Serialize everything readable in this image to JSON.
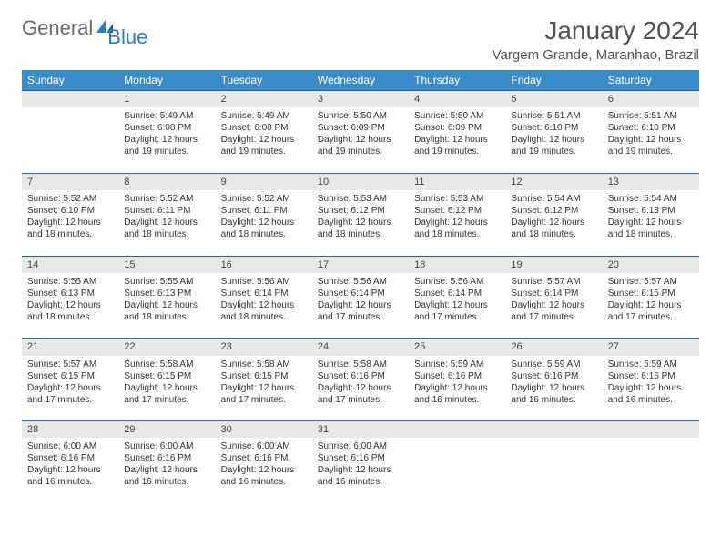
{
  "brand": {
    "word1": "General",
    "word2": "Blue"
  },
  "title": "January 2024",
  "location": "Vargem Grande, Maranhao, Brazil",
  "colors": {
    "header_bg": "#3b8bc9",
    "header_text": "#ffffff",
    "daynum_bg": "#e8e8e8",
    "border": "#2d5f8a",
    "brand_gray": "#6b6b6b",
    "brand_blue": "#2d7bbf",
    "text": "#333333",
    "page_bg": "#ffffff"
  },
  "typography": {
    "title_fontsize": 28,
    "location_fontsize": 15,
    "dayheader_fontsize": 12,
    "daynum_fontsize": 11,
    "cell_fontsize": 10
  },
  "day_headers": [
    "Sunday",
    "Monday",
    "Tuesday",
    "Wednesday",
    "Thursday",
    "Friday",
    "Saturday"
  ],
  "weeks": [
    {
      "nums": [
        "",
        "1",
        "2",
        "3",
        "4",
        "5",
        "6"
      ],
      "cells": [
        null,
        {
          "sunrise": "Sunrise: 5:49 AM",
          "sunset": "Sunset: 6:08 PM",
          "day1": "Daylight: 12 hours",
          "day2": "and 19 minutes."
        },
        {
          "sunrise": "Sunrise: 5:49 AM",
          "sunset": "Sunset: 6:08 PM",
          "day1": "Daylight: 12 hours",
          "day2": "and 19 minutes."
        },
        {
          "sunrise": "Sunrise: 5:50 AM",
          "sunset": "Sunset: 6:09 PM",
          "day1": "Daylight: 12 hours",
          "day2": "and 19 minutes."
        },
        {
          "sunrise": "Sunrise: 5:50 AM",
          "sunset": "Sunset: 6:09 PM",
          "day1": "Daylight: 12 hours",
          "day2": "and 19 minutes."
        },
        {
          "sunrise": "Sunrise: 5:51 AM",
          "sunset": "Sunset: 6:10 PM",
          "day1": "Daylight: 12 hours",
          "day2": "and 19 minutes."
        },
        {
          "sunrise": "Sunrise: 5:51 AM",
          "sunset": "Sunset: 6:10 PM",
          "day1": "Daylight: 12 hours",
          "day2": "and 19 minutes."
        }
      ]
    },
    {
      "nums": [
        "7",
        "8",
        "9",
        "10",
        "11",
        "12",
        "13"
      ],
      "cells": [
        {
          "sunrise": "Sunrise: 5:52 AM",
          "sunset": "Sunset: 6:10 PM",
          "day1": "Daylight: 12 hours",
          "day2": "and 18 minutes."
        },
        {
          "sunrise": "Sunrise: 5:52 AM",
          "sunset": "Sunset: 6:11 PM",
          "day1": "Daylight: 12 hours",
          "day2": "and 18 minutes."
        },
        {
          "sunrise": "Sunrise: 5:52 AM",
          "sunset": "Sunset: 6:11 PM",
          "day1": "Daylight: 12 hours",
          "day2": "and 18 minutes."
        },
        {
          "sunrise": "Sunrise: 5:53 AM",
          "sunset": "Sunset: 6:12 PM",
          "day1": "Daylight: 12 hours",
          "day2": "and 18 minutes."
        },
        {
          "sunrise": "Sunrise: 5:53 AM",
          "sunset": "Sunset: 6:12 PM",
          "day1": "Daylight: 12 hours",
          "day2": "and 18 minutes."
        },
        {
          "sunrise": "Sunrise: 5:54 AM",
          "sunset": "Sunset: 6:12 PM",
          "day1": "Daylight: 12 hours",
          "day2": "and 18 minutes."
        },
        {
          "sunrise": "Sunrise: 5:54 AM",
          "sunset": "Sunset: 6:13 PM",
          "day1": "Daylight: 12 hours",
          "day2": "and 18 minutes."
        }
      ]
    },
    {
      "nums": [
        "14",
        "15",
        "16",
        "17",
        "18",
        "19",
        "20"
      ],
      "cells": [
        {
          "sunrise": "Sunrise: 5:55 AM",
          "sunset": "Sunset: 6:13 PM",
          "day1": "Daylight: 12 hours",
          "day2": "and 18 minutes."
        },
        {
          "sunrise": "Sunrise: 5:55 AM",
          "sunset": "Sunset: 6:13 PM",
          "day1": "Daylight: 12 hours",
          "day2": "and 18 minutes."
        },
        {
          "sunrise": "Sunrise: 5:56 AM",
          "sunset": "Sunset: 6:14 PM",
          "day1": "Daylight: 12 hours",
          "day2": "and 18 minutes."
        },
        {
          "sunrise": "Sunrise: 5:56 AM",
          "sunset": "Sunset: 6:14 PM",
          "day1": "Daylight: 12 hours",
          "day2": "and 17 minutes."
        },
        {
          "sunrise": "Sunrise: 5:56 AM",
          "sunset": "Sunset: 6:14 PM",
          "day1": "Daylight: 12 hours",
          "day2": "and 17 minutes."
        },
        {
          "sunrise": "Sunrise: 5:57 AM",
          "sunset": "Sunset: 6:14 PM",
          "day1": "Daylight: 12 hours",
          "day2": "and 17 minutes."
        },
        {
          "sunrise": "Sunrise: 5:57 AM",
          "sunset": "Sunset: 6:15 PM",
          "day1": "Daylight: 12 hours",
          "day2": "and 17 minutes."
        }
      ]
    },
    {
      "nums": [
        "21",
        "22",
        "23",
        "24",
        "25",
        "26",
        "27"
      ],
      "cells": [
        {
          "sunrise": "Sunrise: 5:57 AM",
          "sunset": "Sunset: 6:15 PM",
          "day1": "Daylight: 12 hours",
          "day2": "and 17 minutes."
        },
        {
          "sunrise": "Sunrise: 5:58 AM",
          "sunset": "Sunset: 6:15 PM",
          "day1": "Daylight: 12 hours",
          "day2": "and 17 minutes."
        },
        {
          "sunrise": "Sunrise: 5:58 AM",
          "sunset": "Sunset: 6:15 PM",
          "day1": "Daylight: 12 hours",
          "day2": "and 17 minutes."
        },
        {
          "sunrise": "Sunrise: 5:58 AM",
          "sunset": "Sunset: 6:16 PM",
          "day1": "Daylight: 12 hours",
          "day2": "and 17 minutes."
        },
        {
          "sunrise": "Sunrise: 5:59 AM",
          "sunset": "Sunset: 6:16 PM",
          "day1": "Daylight: 12 hours",
          "day2": "and 16 minutes."
        },
        {
          "sunrise": "Sunrise: 5:59 AM",
          "sunset": "Sunset: 6:16 PM",
          "day1": "Daylight: 12 hours",
          "day2": "and 16 minutes."
        },
        {
          "sunrise": "Sunrise: 5:59 AM",
          "sunset": "Sunset: 6:16 PM",
          "day1": "Daylight: 12 hours",
          "day2": "and 16 minutes."
        }
      ]
    },
    {
      "nums": [
        "28",
        "29",
        "30",
        "31",
        "",
        "",
        ""
      ],
      "cells": [
        {
          "sunrise": "Sunrise: 6:00 AM",
          "sunset": "Sunset: 6:16 PM",
          "day1": "Daylight: 12 hours",
          "day2": "and 16 minutes."
        },
        {
          "sunrise": "Sunrise: 6:00 AM",
          "sunset": "Sunset: 6:16 PM",
          "day1": "Daylight: 12 hours",
          "day2": "and 16 minutes."
        },
        {
          "sunrise": "Sunrise: 6:00 AM",
          "sunset": "Sunset: 6:16 PM",
          "day1": "Daylight: 12 hours",
          "day2": "and 16 minutes."
        },
        {
          "sunrise": "Sunrise: 6:00 AM",
          "sunset": "Sunset: 6:16 PM",
          "day1": "Daylight: 12 hours",
          "day2": "and 16 minutes."
        },
        null,
        null,
        null
      ]
    }
  ]
}
